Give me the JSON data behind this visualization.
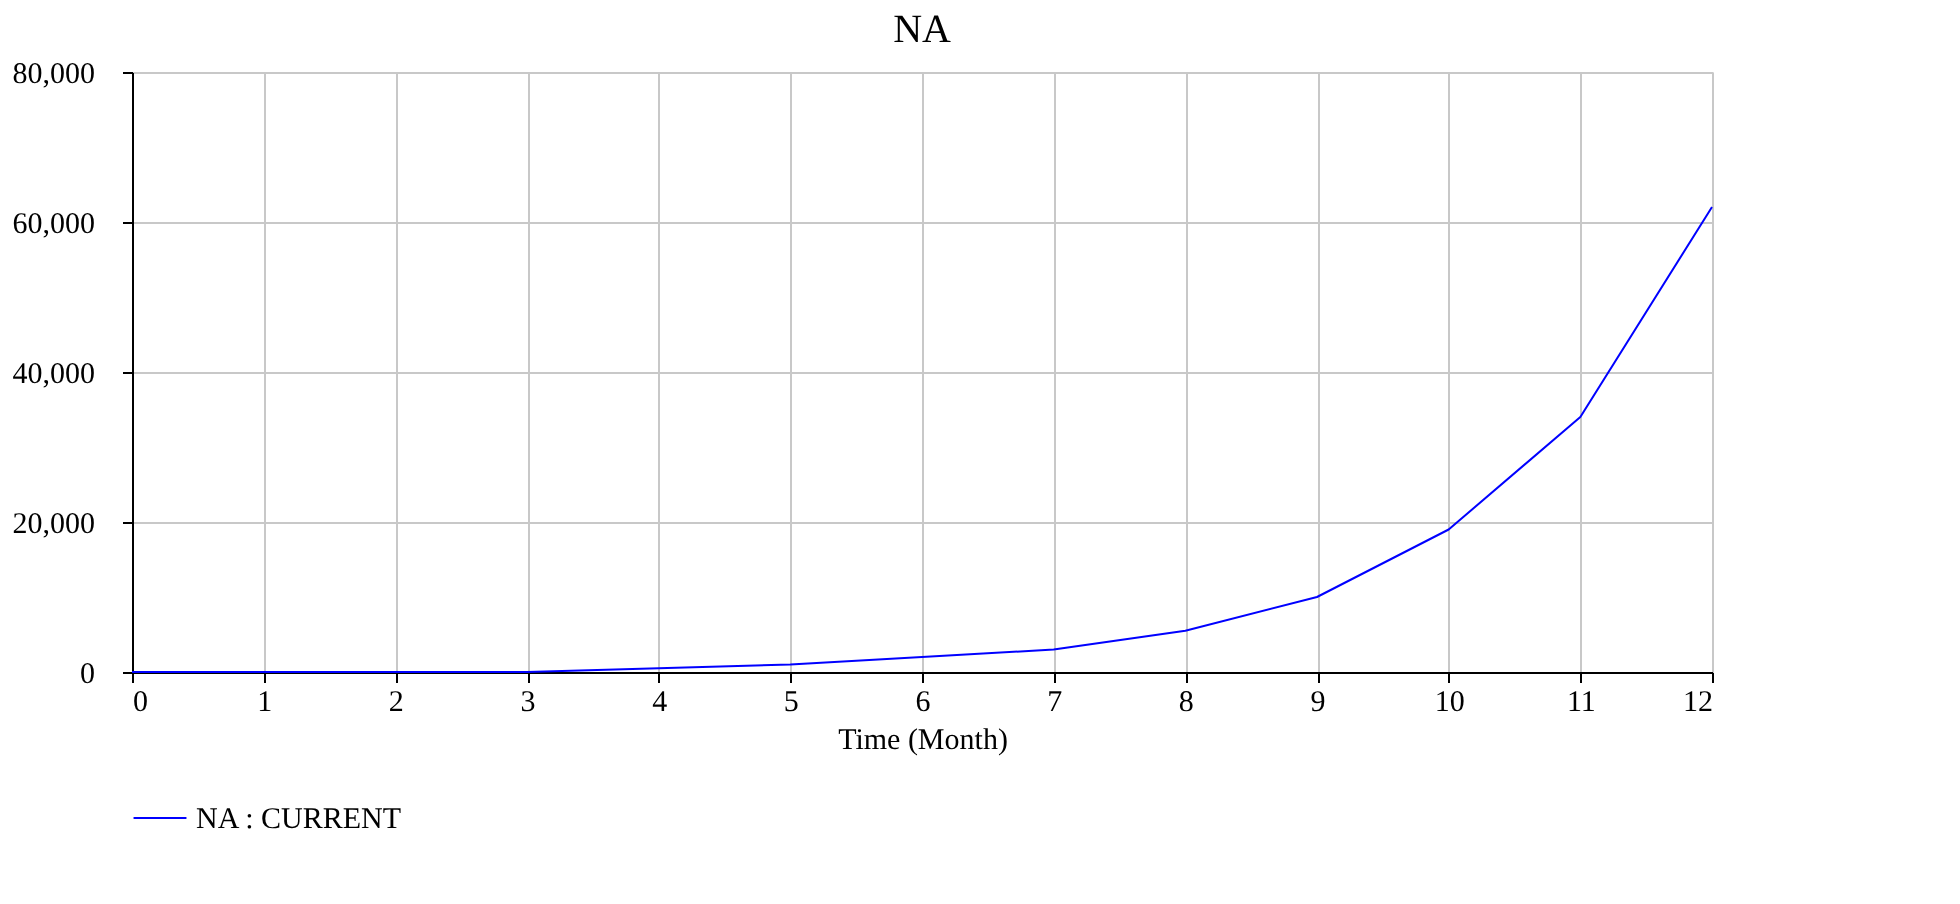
{
  "chart_data": {
    "type": "line",
    "title": "NA",
    "xlabel": "Time (Month)",
    "x": [
      0,
      1,
      2,
      3,
      4,
      5,
      6,
      7,
      8,
      9,
      10,
      11,
      12
    ],
    "series": [
      {
        "name": "NA : CURRENT",
        "color": "#0000ff",
        "values": [
          0,
          0,
          0,
          0,
          500,
          1000,
          2000,
          3000,
          5500,
          10000,
          19000,
          34000,
          62000
        ]
      }
    ],
    "xlim": [
      0,
      12
    ],
    "xticks": [
      0,
      1,
      2,
      3,
      4,
      5,
      6,
      7,
      8,
      9,
      10,
      11,
      12
    ],
    "ylim": [
      0,
      80000
    ],
    "yticks": [
      {
        "value": 0,
        "label": "0"
      },
      {
        "value": 20000,
        "label": "20,000"
      },
      {
        "value": 40000,
        "label": "40,000"
      },
      {
        "value": 60000,
        "label": "60,000"
      },
      {
        "value": 80000,
        "label": "80,000"
      }
    ],
    "grid": true,
    "legend": "bottom left",
    "marker": "none",
    "line_style": "solid"
  }
}
